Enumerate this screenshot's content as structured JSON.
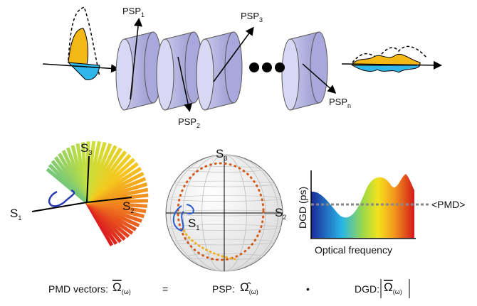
{
  "top": {
    "psp": [
      {
        "base": "PSP",
        "sub": "1"
      },
      {
        "base": "PSP",
        "sub": "2"
      },
      {
        "base": "PSP",
        "sub": "3"
      },
      {
        "base": "PSP",
        "sub": "n"
      }
    ]
  },
  "axes": [
    {
      "base": "S",
      "sub": "3"
    },
    {
      "base": "S",
      "sub": "1"
    },
    {
      "base": "S",
      "sub": "2"
    }
  ],
  "dgd_plot": {
    "y_label": "DGD (ps)",
    "x_label": "Optical frequency",
    "mean_label": "<PMD>"
  },
  "equation": {
    "pmd_label": "PMD vectors:",
    "symbol": "Ω",
    "hat_symbol": "Ω̂",
    "arg": "(ω)",
    "equals": "=",
    "psp_label": "PSP:",
    "dot": "•",
    "dgd_label": "DGD:"
  }
}
